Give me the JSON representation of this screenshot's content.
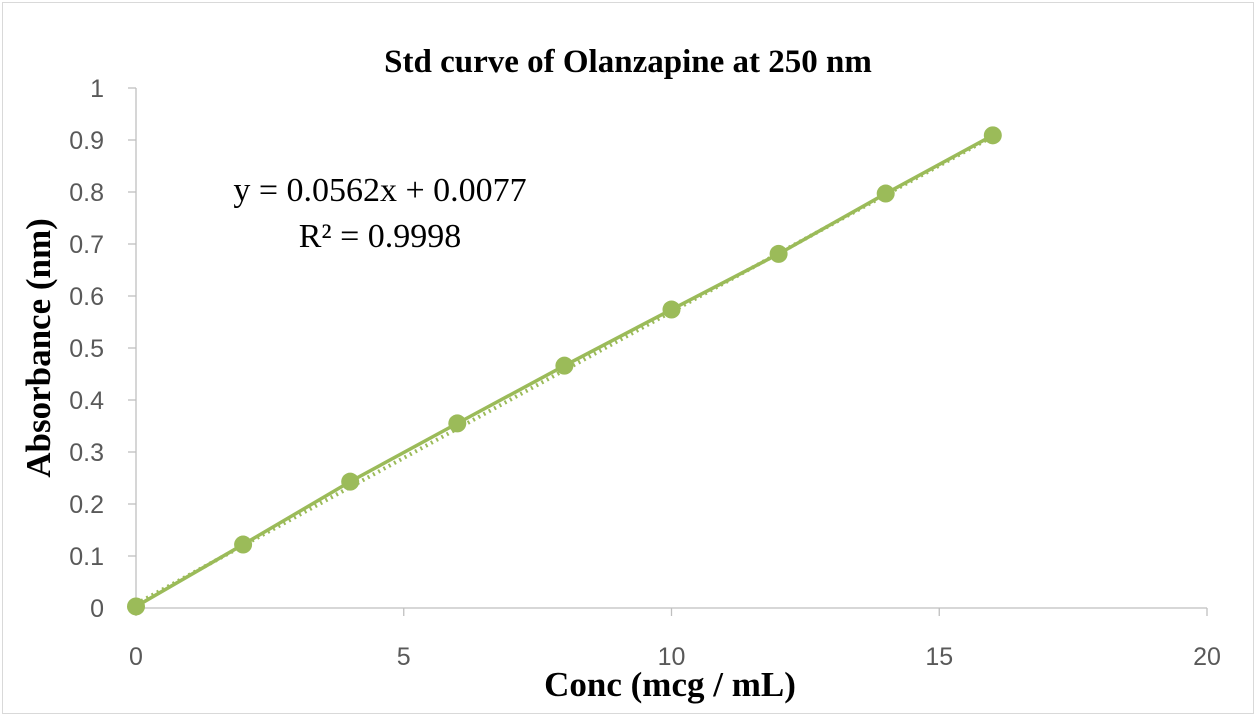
{
  "chart_data": {
    "type": "scatter",
    "title": "Std curve of Olanzapine at 250 nm",
    "xlabel": "Conc (mcg / mL)",
    "ylabel": "Absorbance (nm)",
    "xlim": [
      0,
      20
    ],
    "ylim": [
      0,
      1
    ],
    "x_ticks": [
      "0",
      "5",
      "10",
      "15",
      "20"
    ],
    "y_ticks": [
      "0",
      "0.1",
      "0.2",
      "0.3",
      "0.4",
      "0.5",
      "0.6",
      "0.7",
      "0.8",
      "0.9",
      "1"
    ],
    "grid": false,
    "series": [
      {
        "x": [
          0,
          2,
          4,
          6,
          8,
          10,
          12,
          14,
          16
        ],
        "y": [
          0.003,
          0.122,
          0.243,
          0.355,
          0.466,
          0.574,
          0.681,
          0.797,
          0.909
        ],
        "color": "#9bbb59"
      }
    ],
    "trendline": {
      "slope": 0.0562,
      "intercept": 0.0077,
      "equation": "y = 0.0562x + 0.0077",
      "r_squared": "R² = 0.9998",
      "color": "#9bbb59"
    }
  }
}
